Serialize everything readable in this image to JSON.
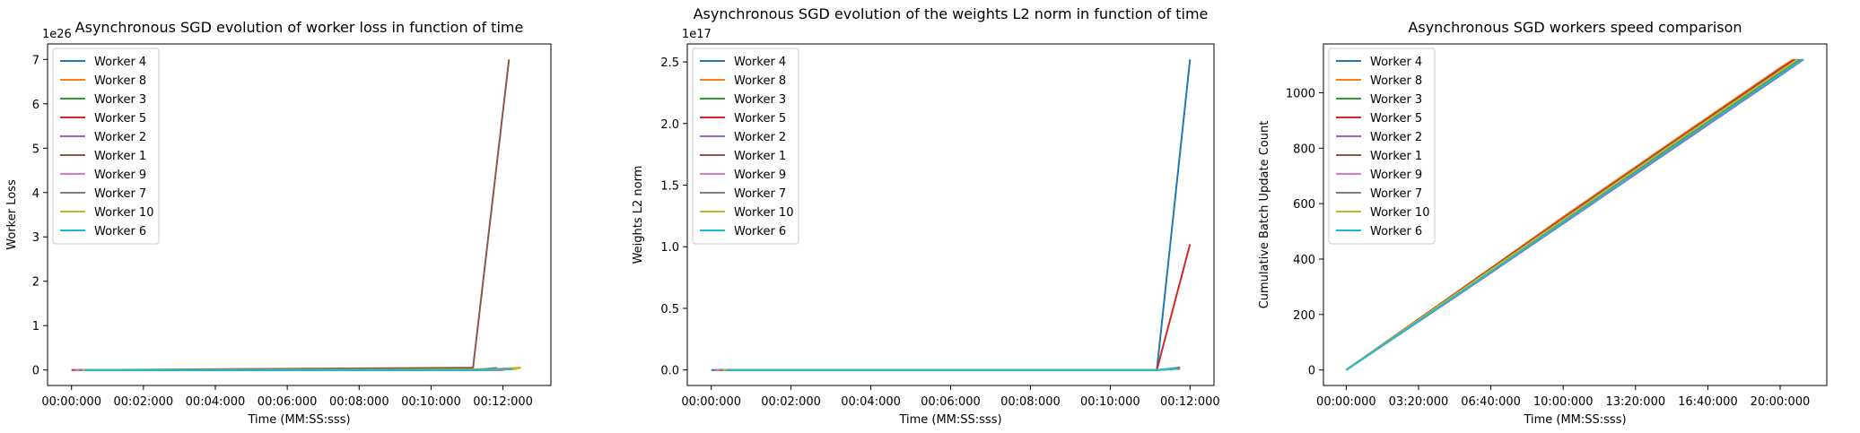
{
  "chart_data": [
    {
      "type": "line",
      "title": "Asynchronous SGD evolution of worker loss in function of time",
      "xlabel": "Time (MM:SS:sss)",
      "ylabel": "Worker Loss",
      "y_offset_text": "1e26",
      "x_unit": "seconds",
      "xlim": [
        -40,
        800
      ],
      "ylim": [
        -0.35,
        7.35
      ],
      "x_ticks": [
        0,
        120,
        240,
        360,
        480,
        600,
        720
      ],
      "x_tick_labels": [
        "00:00:000",
        "00:02:000",
        "00:04:000",
        "00:06:000",
        "00:08:000",
        "00:10:000",
        "00:12:000"
      ],
      "y_ticks": [
        0,
        1,
        2,
        3,
        4,
        5,
        6,
        7
      ],
      "y_tick_labels": [
        "0",
        "1",
        "2",
        "3",
        "4",
        "5",
        "6",
        "7"
      ],
      "legend_position": "upper-left",
      "series": [
        {
          "name": "Worker 4",
          "color": "#1f77b4",
          "x": [
            10,
            670,
            720
          ],
          "y": [
            0,
            0,
            0
          ]
        },
        {
          "name": "Worker 8",
          "color": "#ff7f0e",
          "x": [
            25,
            700,
            750
          ],
          "y": [
            0,
            0.02,
            0.05
          ]
        },
        {
          "name": "Worker 3",
          "color": "#2ca02c",
          "x": [
            15,
            670,
            740
          ],
          "y": [
            0,
            0,
            0.02
          ]
        },
        {
          "name": "Worker 5",
          "color": "#d62728",
          "x": [
            0,
            670,
            720
          ],
          "y": [
            0,
            0,
            0
          ]
        },
        {
          "name": "Worker 2",
          "color": "#9467bd",
          "x": [
            5,
            670,
            725
          ],
          "y": [
            0,
            0,
            0.01
          ]
        },
        {
          "name": "Worker 1",
          "color": "#8c564b",
          "x": [
            20,
            670,
            730
          ],
          "y": [
            0,
            0.05,
            7.0
          ]
        },
        {
          "name": "Worker 9",
          "color": "#e377c2",
          "x": [
            8,
            670,
            720
          ],
          "y": [
            0,
            0,
            0
          ]
        },
        {
          "name": "Worker 7",
          "color": "#7f7f7f",
          "x": [
            12,
            670,
            710
          ],
          "y": [
            0,
            0,
            0.05
          ]
        },
        {
          "name": "Worker 10",
          "color": "#bcbd22",
          "x": [
            18,
            690,
            745
          ],
          "y": [
            0,
            0.01,
            0.03
          ]
        },
        {
          "name": "Worker 6",
          "color": "#17becf",
          "x": [
            22,
            670,
            735
          ],
          "y": [
            0,
            0,
            0.02
          ]
        }
      ]
    },
    {
      "type": "line",
      "title": "Asynchronous SGD evolution of the weights L2 norm in function of time",
      "xlabel": "Time (MM:SS:sss)",
      "ylabel": "Weights L2 norm",
      "y_offset_text": "1e17",
      "x_unit": "seconds",
      "xlim": [
        -36,
        756
      ],
      "ylim": [
        -0.126,
        2.646
      ],
      "x_ticks": [
        0,
        120,
        240,
        360,
        480,
        600,
        720
      ],
      "x_tick_labels": [
        "00:00:000",
        "00:02:000",
        "00:04:000",
        "00:06:000",
        "00:08:000",
        "00:10:000",
        "00:12:000"
      ],
      "y_ticks": [
        0,
        0.5,
        1.0,
        1.5,
        2.0,
        2.5
      ],
      "y_tick_labels": [
        "0.0",
        "0.5",
        "1.0",
        "1.5",
        "2.0",
        "2.5"
      ],
      "legend_position": "upper-left",
      "series": [
        {
          "name": "Worker 4",
          "color": "#1f77b4",
          "x": [
            0,
            670,
            720
          ],
          "y": [
            0,
            0,
            2.52
          ]
        },
        {
          "name": "Worker 8",
          "color": "#ff7f0e",
          "x": [
            20,
            670,
            700
          ],
          "y": [
            0,
            0,
            0.01
          ]
        },
        {
          "name": "Worker 3",
          "color": "#2ca02c",
          "x": [
            10,
            670,
            705
          ],
          "y": [
            0,
            0,
            0.01
          ]
        },
        {
          "name": "Worker 5",
          "color": "#d62728",
          "x": [
            15,
            670,
            720
          ],
          "y": [
            0,
            0,
            1.02
          ]
        },
        {
          "name": "Worker 2",
          "color": "#9467bd",
          "x": [
            5,
            670,
            705
          ],
          "y": [
            0,
            0,
            0.02
          ]
        },
        {
          "name": "Worker 1",
          "color": "#8c564b",
          "x": [
            25,
            670,
            700
          ],
          "y": [
            0,
            0,
            0.01
          ]
        },
        {
          "name": "Worker 9",
          "color": "#e377c2",
          "x": [
            8,
            670,
            700
          ],
          "y": [
            0,
            0,
            0.01
          ]
        },
        {
          "name": "Worker 7",
          "color": "#7f7f7f",
          "x": [
            12,
            670,
            705
          ],
          "y": [
            0,
            0,
            0.01
          ]
        },
        {
          "name": "Worker 10",
          "color": "#bcbd22",
          "x": [
            18,
            670,
            700
          ],
          "y": [
            0,
            0,
            0.01
          ]
        },
        {
          "name": "Worker 6",
          "color": "#17becf",
          "x": [
            22,
            670,
            700
          ],
          "y": [
            0,
            0,
            0.01
          ]
        }
      ]
    },
    {
      "type": "line",
      "title": "Asynchronous SGD workers speed comparison",
      "xlabel": "Time (MM:SS:sss)",
      "ylabel": "Cumulative Batch Update Count",
      "x_unit": "seconds",
      "xlim": [
        -63,
        1329
      ],
      "ylim": [
        -56,
        1176
      ],
      "x_ticks": [
        0,
        200,
        400,
        600,
        800,
        1000,
        1200
      ],
      "x_tick_labels": [
        "00:00:000",
        "03:20:000",
        "06:40:000",
        "10:00:000",
        "13:20:000",
        "16:40:000",
        "20:00:000"
      ],
      "y_ticks": [
        0,
        200,
        400,
        600,
        800,
        1000
      ],
      "y_tick_labels": [
        "0",
        "200",
        "400",
        "600",
        "800",
        "1000"
      ],
      "legend_position": "upper-left",
      "series": [
        {
          "name": "Worker 4",
          "color": "#1f77b4",
          "x": [
            0,
            300,
            600,
            900,
            1200,
            1250
          ],
          "y": [
            0,
            268,
            538,
            805,
            1075,
            1120
          ]
        },
        {
          "name": "Worker 8",
          "color": "#ff7f0e",
          "x": [
            0,
            300,
            600,
            900,
            1200,
            1235
          ],
          "y": [
            0,
            275,
            552,
            822,
            1090,
            1120
          ]
        },
        {
          "name": "Worker 3",
          "color": "#2ca02c",
          "x": [
            0,
            300,
            600,
            900,
            1200,
            1255
          ],
          "y": [
            0,
            270,
            540,
            808,
            1070,
            1120
          ]
        },
        {
          "name": "Worker 5",
          "color": "#d62728",
          "x": [
            0,
            300,
            600,
            900,
            1200,
            1240
          ],
          "y": [
            0,
            274,
            548,
            818,
            1086,
            1120
          ]
        },
        {
          "name": "Worker 2",
          "color": "#9467bd",
          "x": [
            0,
            300,
            600,
            900,
            1200,
            1265
          ],
          "y": [
            0,
            262,
            528,
            795,
            1062,
            1120
          ]
        },
        {
          "name": "Worker 1",
          "color": "#8c564b",
          "x": [
            0,
            300,
            600,
            900,
            1200,
            1245
          ],
          "y": [
            0,
            272,
            545,
            815,
            1082,
            1120
          ]
        },
        {
          "name": "Worker 9",
          "color": "#e377c2",
          "x": [
            0,
            300,
            600,
            900,
            1200,
            1260
          ],
          "y": [
            0,
            266,
            534,
            802,
            1068,
            1120
          ]
        },
        {
          "name": "Worker 7",
          "color": "#7f7f7f",
          "x": [
            0,
            300,
            600,
            900,
            1200,
            1258
          ],
          "y": [
            0,
            268,
            536,
            803,
            1069,
            1120
          ]
        },
        {
          "name": "Worker 10",
          "color": "#bcbd22",
          "x": [
            0,
            300,
            600,
            900,
            1200,
            1248
          ],
          "y": [
            0,
            271,
            542,
            812,
            1078,
            1120
          ]
        },
        {
          "name": "Worker 6",
          "color": "#17becf",
          "x": [
            0,
            300,
            600,
            900,
            1200,
            1262
          ],
          "y": [
            0,
            265,
            532,
            800,
            1066,
            1120
          ]
        }
      ]
    }
  ]
}
